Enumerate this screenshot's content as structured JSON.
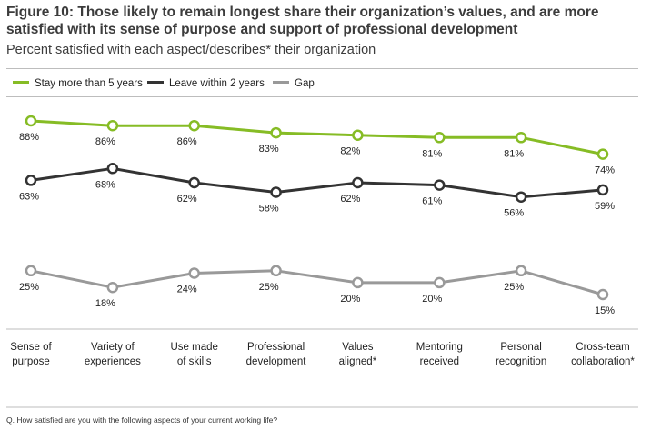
{
  "title": "Figure 10: Those likely to remain longest share their organization’s values, and are more satisfied with its sense of purpose and support of professional development",
  "subtitle": "Percent satisfied with each aspect/describes* their organization",
  "footnote": "Q. How satisfied are you with the following aspects of your current working life?",
  "colors": {
    "stay": "#86bc25",
    "leave": "#333333",
    "gap": "#999999",
    "label": "#222222"
  },
  "chart_data": {
    "type": "line",
    "categories": [
      [
        "Sense of",
        "purpose"
      ],
      [
        "Variety of",
        "experiences"
      ],
      [
        "Use made",
        "of skills"
      ],
      [
        "Professional",
        "development"
      ],
      [
        "Values",
        "aligned*"
      ],
      [
        "Mentoring",
        "received"
      ],
      [
        "Personal",
        "recognition"
      ],
      [
        "Cross-team",
        "collaboration*"
      ]
    ],
    "series": [
      {
        "name": "Stay more than 5 years",
        "values": [
          88,
          86,
          86,
          83,
          82,
          81,
          81,
          74
        ]
      },
      {
        "name": "Leave within 2 years",
        "values": [
          63,
          68,
          62,
          58,
          62,
          61,
          56,
          59
        ]
      },
      {
        "name": "Gap",
        "values": [
          25,
          18,
          24,
          25,
          20,
          20,
          25,
          15
        ]
      }
    ],
    "value_suffix": "%",
    "grid": false,
    "legend_position": "top-left"
  }
}
